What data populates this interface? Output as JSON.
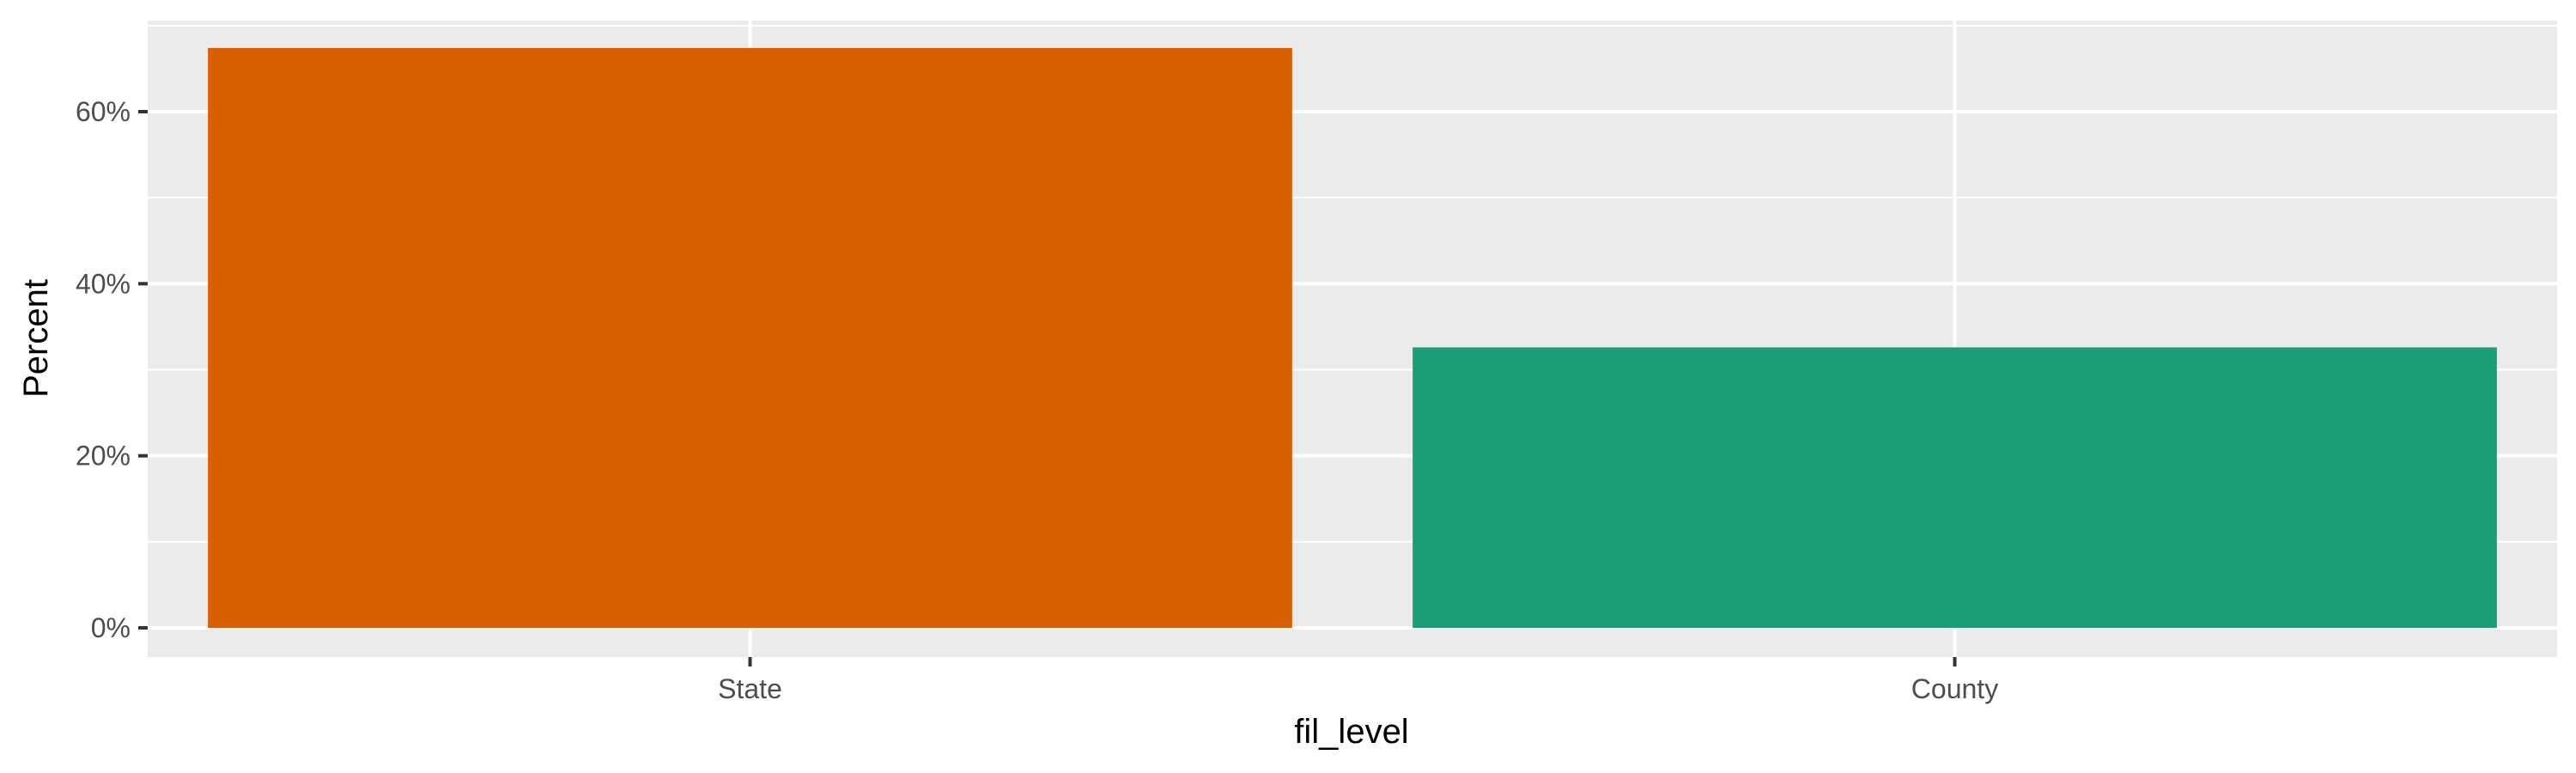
{
  "chart_data": {
    "type": "bar",
    "title": "",
    "xlabel": "fil_level",
    "ylabel": "Percent",
    "categories": [
      "State",
      "County"
    ],
    "values": [
      67.4,
      32.6
    ],
    "value_unit": "percent",
    "ylim": [
      0,
      70.7
    ],
    "yticks": [
      0,
      20,
      40,
      60
    ],
    "ytick_labels": [
      "0%",
      "20%",
      "40%",
      "60%"
    ],
    "bar_colors": [
      "#d95f02",
      "#1b9e77"
    ],
    "panel_background": "#ebebeb",
    "grid_color": "#ffffff",
    "grid": true,
    "legend": "none"
  }
}
